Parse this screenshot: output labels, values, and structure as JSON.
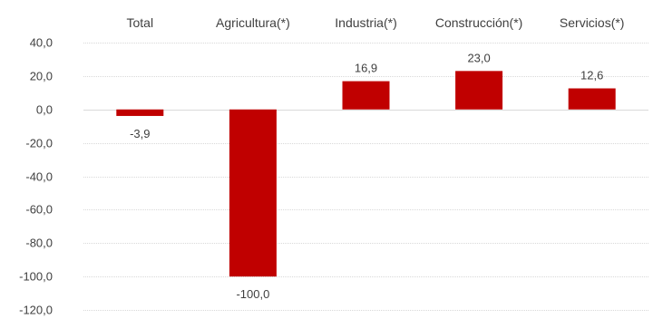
{
  "chart_data": {
    "type": "bar",
    "categories": [
      "Total",
      "Agricultura(*)",
      "Industria(*)",
      "Construcción(*)",
      "Servicios(*)"
    ],
    "values": [
      -3.9,
      -100.0,
      16.9,
      23.0,
      12.6
    ],
    "value_labels": [
      "-3,9",
      "-100,0",
      "16,9",
      "23,0",
      "12,6"
    ],
    "ylim": [
      -120,
      40
    ],
    "yticks": [
      40,
      20,
      0,
      -20,
      -40,
      -60,
      -80,
      -100,
      -120
    ],
    "ytick_labels": [
      "40,0",
      "20,0",
      "0,0",
      "-20,0",
      "-40,0",
      "-60,0",
      "-80,0",
      "-100,0",
      "-120,0"
    ],
    "category_axis_position": "top",
    "grid": true,
    "legend": "none",
    "bar_color": "#c00000"
  }
}
